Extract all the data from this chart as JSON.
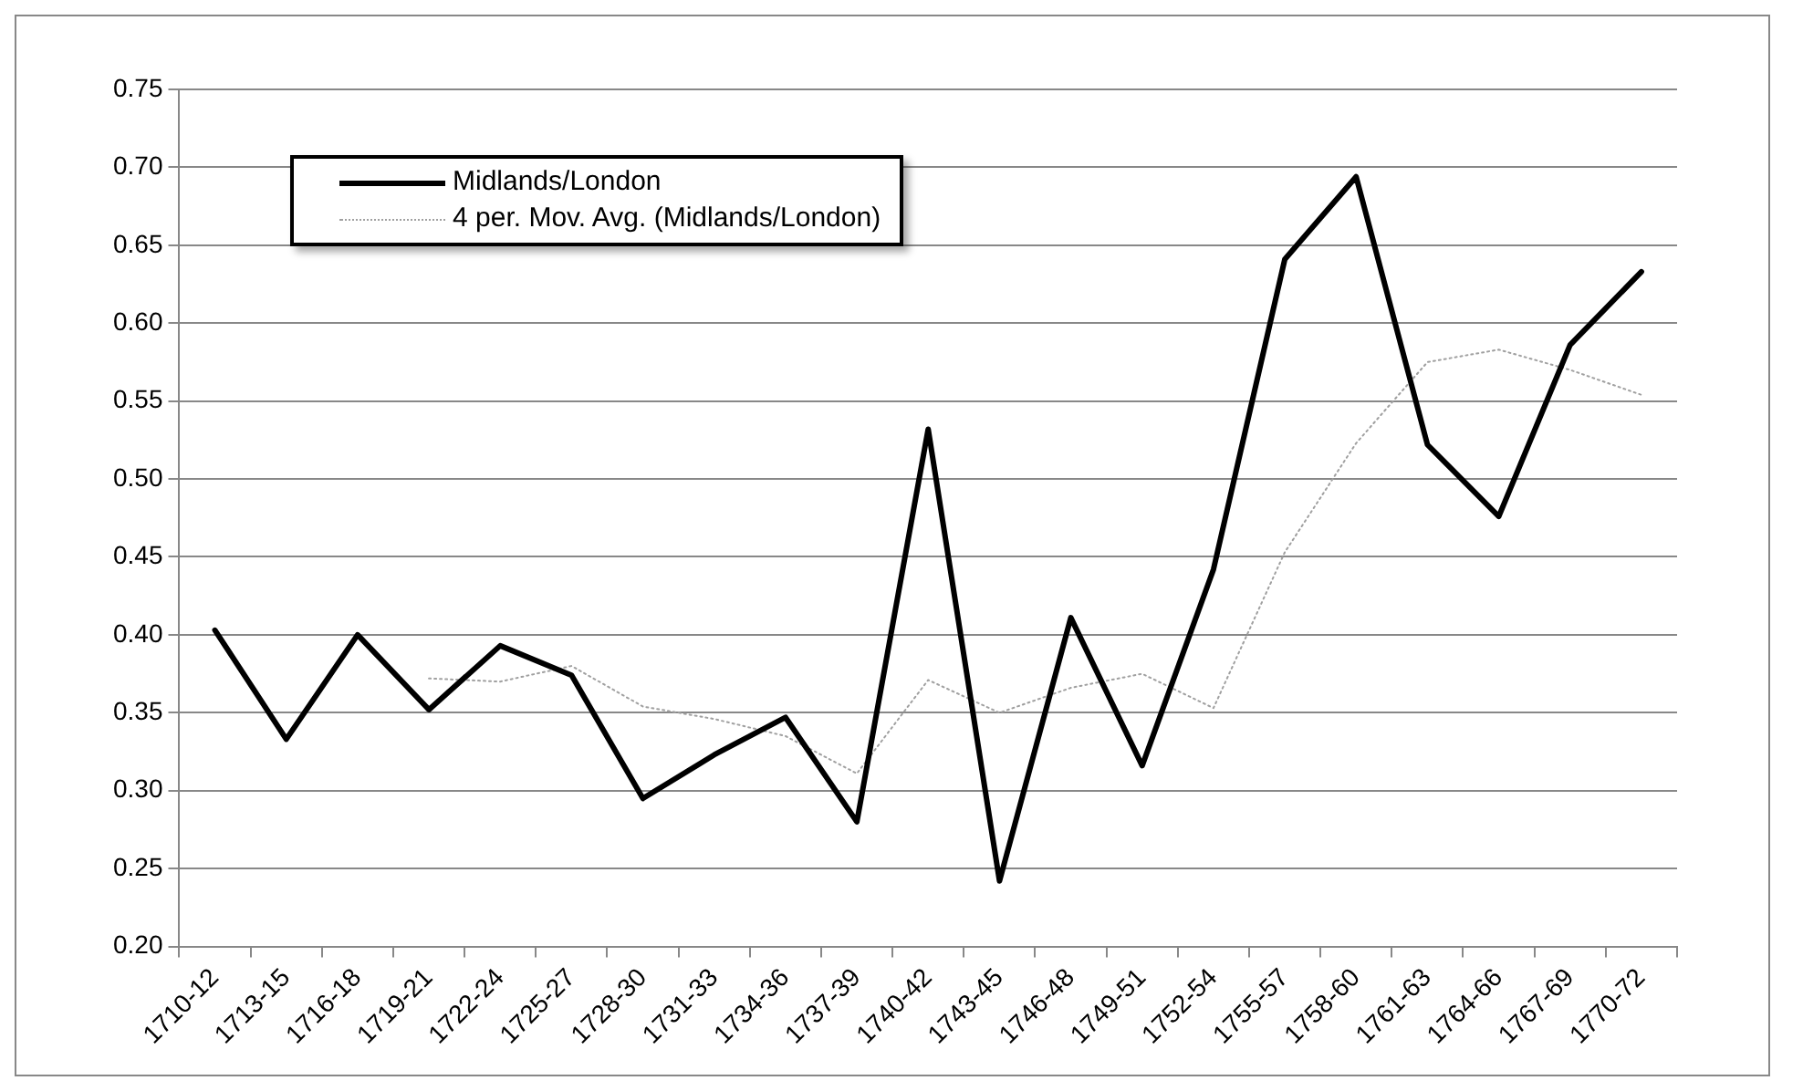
{
  "chart_data": {
    "type": "line",
    "categories": [
      "1710-12",
      "1713-15",
      "1716-18",
      "1719-21",
      "1722-24",
      "1725-27",
      "1728-30",
      "1731-33",
      "1734-36",
      "1737-39",
      "1740-42",
      "1743-45",
      "1746-48",
      "1749-51",
      "1752-54",
      "1755-57",
      "1758-60",
      "1761-63",
      "1764-66",
      "1767-69",
      "1770-72"
    ],
    "series": [
      {
        "name": "Midlands/London",
        "color": "#000000",
        "line_style": "solid",
        "values": [
          0.403,
          0.333,
          0.4,
          0.352,
          0.393,
          0.374,
          0.295,
          0.323,
          0.347,
          0.28,
          0.532,
          0.242,
          0.411,
          0.316,
          0.442,
          0.641,
          0.694,
          0.522,
          0.476,
          0.586,
          0.633
        ]
      },
      {
        "name": "4 per. Mov. Avg. (Midlands/London)",
        "color": "#a0a0a0",
        "line_style": "dotted",
        "values": [
          null,
          null,
          null,
          0.372,
          0.37,
          0.38,
          0.354,
          0.346,
          0.335,
          0.311,
          0.371,
          0.35,
          0.366,
          0.375,
          0.353,
          0.453,
          0.523,
          0.575,
          0.583,
          0.57,
          0.554
        ]
      }
    ],
    "ylim": [
      0.2,
      0.75
    ],
    "yticks": [
      {
        "value": 0.2,
        "label": "0.20"
      },
      {
        "value": 0.25,
        "label": "0.25"
      },
      {
        "value": 0.3,
        "label": "0.30"
      },
      {
        "value": 0.35,
        "label": "0.35"
      },
      {
        "value": 0.4,
        "label": "0.40"
      },
      {
        "value": 0.45,
        "label": "0.45"
      },
      {
        "value": 0.5,
        "label": "0.50"
      },
      {
        "value": 0.55,
        "label": "0.55"
      },
      {
        "value": 0.6,
        "label": "0.60"
      },
      {
        "value": 0.65,
        "label": "0.65"
      },
      {
        "value": 0.7,
        "label": "0.70"
      },
      {
        "value": 0.75,
        "label": "0.75"
      }
    ],
    "grid": "y",
    "legend": "top left",
    "marker": "none"
  }
}
